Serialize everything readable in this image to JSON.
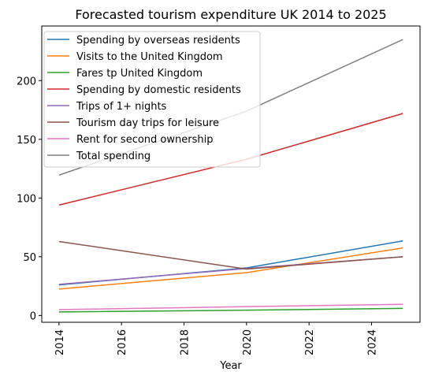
{
  "chart_data": {
    "type": "line",
    "title": "Forecasted tourism expenditure UK 2014 to 2025",
    "xlabel": "Year",
    "ylabel": "",
    "x": [
      2014,
      2020,
      2025
    ],
    "xlim": [
      2013.45,
      2025.55
    ],
    "ylim": [
      -5.8,
      246.5
    ],
    "xticks": [
      2014,
      2016,
      2018,
      2020,
      2022,
      2024
    ],
    "yticks": [
      0,
      50,
      100,
      150,
      200
    ],
    "grid": false,
    "legend_position": "upper left",
    "series": [
      {
        "name": "Spending by overseas residents",
        "color": "#1f77b4",
        "values": [
          26,
          40.5,
          63.5
        ]
      },
      {
        "name": "Visits to the United Kingdom",
        "color": "#ff7f0e",
        "values": [
          22.5,
          36.5,
          57.5
        ]
      },
      {
        "name": "Fares tp United Kingdom",
        "color": "#2ca02c",
        "values": [
          3,
          4.5,
          6
        ]
      },
      {
        "name": "Spending by domestic residents",
        "color": "#d62728",
        "values": [
          94,
          133,
          172
        ]
      },
      {
        "name": "Trips of 1+ nights",
        "color": "#9467bd",
        "values": [
          26.5,
          40,
          50
        ]
      },
      {
        "name": "Tourism day trips for leisure",
        "color": "#8c564b",
        "values": [
          63,
          39.5,
          50
        ]
      },
      {
        "name": "Rent for second ownership",
        "color": "#e377c2",
        "values": [
          5,
          7.5,
          9.5
        ]
      },
      {
        "name": "Total spending",
        "color": "#7f7f7f",
        "values": [
          119.5,
          174,
          235
        ]
      }
    ]
  }
}
